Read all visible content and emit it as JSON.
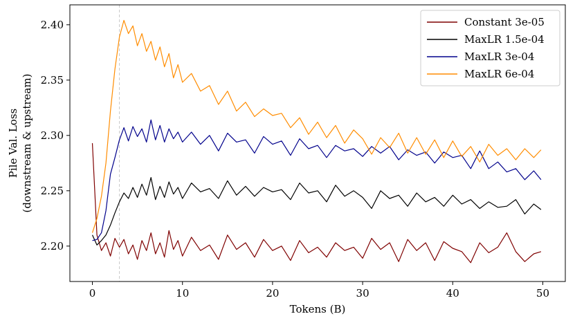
{
  "chart_data": {
    "type": "line",
    "title": "",
    "xlabel": "Tokens (B)",
    "ylabel": [
      "Pile Val. Loss",
      "(downstream & upstream)"
    ],
    "xlim": [
      -2.5,
      52.5
    ],
    "ylim": [
      2.168,
      2.418
    ],
    "x_ticks": [
      0,
      10,
      20,
      30,
      40,
      50
    ],
    "y_ticks": [
      2.2,
      2.25,
      2.3,
      2.35,
      2.4
    ],
    "x_tick_labels": [
      "0",
      "10",
      "20",
      "30",
      "40",
      "50"
    ],
    "y_tick_labels": [
      "2.20",
      "2.25",
      "2.30",
      "2.35",
      "2.40"
    ],
    "grid": false,
    "legend_position": "top-right",
    "vline_x": 3.0,
    "series": [
      {
        "name": "Constant 3e-05",
        "color": "#7f0000",
        "x": [
          0,
          0.5,
          1,
          1.5,
          2,
          2.5,
          3,
          3.5,
          4,
          4.5,
          5,
          5.5,
          6,
          6.5,
          7,
          7.5,
          8,
          8.5,
          9,
          9.5,
          10,
          11,
          12,
          13,
          14,
          15,
          16,
          17,
          18,
          19,
          20,
          21,
          22,
          23,
          24,
          25,
          26,
          27,
          28,
          29,
          30,
          31,
          32,
          33,
          34,
          35,
          36,
          37,
          38,
          39,
          40,
          41,
          42,
          43,
          44,
          45,
          46,
          47,
          48,
          49,
          49.8
        ],
        "values": [
          2.293,
          2.21,
          2.196,
          2.203,
          2.191,
          2.207,
          2.199,
          2.206,
          2.193,
          2.201,
          2.188,
          2.205,
          2.196,
          2.212,
          2.193,
          2.203,
          2.19,
          2.214,
          2.197,
          2.205,
          2.191,
          2.208,
          2.196,
          2.201,
          2.188,
          2.21,
          2.197,
          2.203,
          2.19,
          2.206,
          2.196,
          2.2,
          2.187,
          2.205,
          2.194,
          2.199,
          2.19,
          2.203,
          2.196,
          2.199,
          2.189,
          2.207,
          2.197,
          2.203,
          2.186,
          2.206,
          2.196,
          2.203,
          2.187,
          2.204,
          2.198,
          2.195,
          2.185,
          2.203,
          2.194,
          2.199,
          2.212,
          2.195,
          2.186,
          2.193,
          2.195
        ]
      },
      {
        "name": "MaxLR 1.5e-04",
        "color": "#000000",
        "x": [
          0,
          0.5,
          1,
          1.5,
          2,
          2.5,
          3,
          3.5,
          4,
          4.5,
          5,
          5.5,
          6,
          6.5,
          7,
          7.5,
          8,
          8.5,
          9,
          9.5,
          10,
          11,
          12,
          13,
          14,
          15,
          16,
          17,
          18,
          19,
          20,
          21,
          22,
          23,
          24,
          25,
          26,
          27,
          28,
          29,
          30,
          31,
          32,
          33,
          34,
          35,
          36,
          37,
          38,
          39,
          40,
          41,
          42,
          43,
          44,
          45,
          46,
          47,
          48,
          49,
          49.8
        ],
        "values": [
          2.21,
          2.201,
          2.205,
          2.21,
          2.219,
          2.23,
          2.24,
          2.248,
          2.243,
          2.253,
          2.244,
          2.256,
          2.246,
          2.262,
          2.242,
          2.254,
          2.244,
          2.258,
          2.247,
          2.253,
          2.243,
          2.257,
          2.249,
          2.252,
          2.243,
          2.259,
          2.246,
          2.254,
          2.245,
          2.253,
          2.249,
          2.251,
          2.242,
          2.257,
          2.248,
          2.25,
          2.24,
          2.255,
          2.245,
          2.25,
          2.244,
          2.234,
          2.25,
          2.243,
          2.246,
          2.236,
          2.248,
          2.24,
          2.244,
          2.236,
          2.246,
          2.238,
          2.242,
          2.234,
          2.24,
          2.235,
          2.236,
          2.242,
          2.229,
          2.238,
          2.233
        ]
      },
      {
        "name": "MaxLR 3e-04",
        "color": "#00008b",
        "x": [
          0,
          0.5,
          1,
          1.5,
          2,
          2.5,
          3,
          3.5,
          4,
          4.5,
          5,
          5.5,
          6,
          6.5,
          7,
          7.5,
          8,
          8.5,
          9,
          9.5,
          10,
          11,
          12,
          13,
          14,
          15,
          16,
          17,
          18,
          19,
          20,
          21,
          22,
          23,
          24,
          25,
          26,
          27,
          28,
          29,
          30,
          31,
          32,
          33,
          34,
          35,
          36,
          37,
          38,
          39,
          40,
          41,
          42,
          43,
          44,
          45,
          46,
          47,
          48,
          49,
          49.8
        ],
        "values": [
          2.205,
          2.206,
          2.212,
          2.232,
          2.265,
          2.28,
          2.296,
          2.307,
          2.295,
          2.308,
          2.299,
          2.306,
          2.294,
          2.314,
          2.296,
          2.309,
          2.294,
          2.306,
          2.297,
          2.303,
          2.294,
          2.303,
          2.292,
          2.3,
          2.286,
          2.302,
          2.294,
          2.296,
          2.284,
          2.299,
          2.292,
          2.295,
          2.282,
          2.297,
          2.288,
          2.291,
          2.28,
          2.291,
          2.286,
          2.288,
          2.281,
          2.29,
          2.284,
          2.29,
          2.278,
          2.287,
          2.282,
          2.285,
          2.275,
          2.285,
          2.28,
          2.282,
          2.27,
          2.286,
          2.27,
          2.276,
          2.267,
          2.27,
          2.26,
          2.268,
          2.26
        ]
      },
      {
        "name": "MaxLR 6e-04",
        "color": "#ff8c00",
        "x": [
          0,
          0.5,
          1,
          1.5,
          2,
          2.5,
          3,
          3.5,
          4,
          4.5,
          5,
          5.5,
          6,
          6.5,
          7,
          7.5,
          8,
          8.5,
          9,
          9.5,
          10,
          11,
          12,
          13,
          14,
          15,
          16,
          17,
          18,
          19,
          20,
          21,
          22,
          23,
          24,
          25,
          26,
          27,
          28,
          29,
          30,
          31,
          32,
          33,
          34,
          35,
          36,
          37,
          38,
          39,
          40,
          41,
          42,
          43,
          44,
          45,
          46,
          47,
          48,
          49,
          49.8
        ],
        "values": [
          2.212,
          2.225,
          2.245,
          2.275,
          2.322,
          2.36,
          2.389,
          2.404,
          2.392,
          2.399,
          2.381,
          2.392,
          2.376,
          2.385,
          2.368,
          2.38,
          2.362,
          2.374,
          2.352,
          2.364,
          2.348,
          2.356,
          2.34,
          2.345,
          2.328,
          2.34,
          2.322,
          2.33,
          2.317,
          2.324,
          2.318,
          2.32,
          2.307,
          2.316,
          2.301,
          2.312,
          2.298,
          2.309,
          2.293,
          2.305,
          2.297,
          2.283,
          2.298,
          2.289,
          2.302,
          2.284,
          2.298,
          2.283,
          2.296,
          2.28,
          2.295,
          2.281,
          2.29,
          2.276,
          2.292,
          2.282,
          2.288,
          2.278,
          2.288,
          2.28,
          2.287
        ]
      }
    ]
  }
}
